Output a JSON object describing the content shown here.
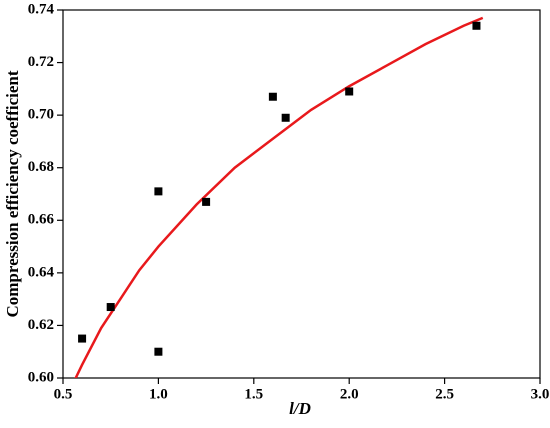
{
  "chart_data": {
    "type": "scatter",
    "x_label": "l/D",
    "y_label": "Compression efficiency coefficient",
    "xlim": [
      0.5,
      3.0
    ],
    "xticks": [
      0.5,
      {
        "value": 1.0,
        "label": "1.0"
      },
      1.5,
      {
        "value": 2.0,
        "label": "2.0"
      },
      2.5,
      {
        "value": 3.0,
        "label": "3.0"
      }
    ],
    "ylim": [
      0.6,
      0.74
    ],
    "yticks": [
      {
        "value": 0.6,
        "label": "0.60"
      },
      0.62,
      0.64,
      0.66,
      0.68,
      {
        "value": 0.7,
        "label": "0.70"
      },
      0.72,
      0.74
    ],
    "series": [
      {
        "marker": "square",
        "color": "#000000",
        "x": [
          0.6,
          0.75,
          1.0,
          1.0,
          1.25,
          1.6,
          1.667,
          2.0,
          2.667
        ],
        "values": [
          0.615,
          0.627,
          0.671,
          0.61,
          0.667,
          0.707,
          0.699,
          0.709,
          0.734
        ]
      },
      {
        "marker": "line",
        "color": "#e8191c",
        "x": [
          0.56,
          0.6,
          0.7,
          0.8,
          0.9,
          1.0,
          1.2,
          1.4,
          1.6,
          1.8,
          2.0,
          2.2,
          2.4,
          2.6,
          2.7
        ],
        "values": [
          0.599,
          0.605,
          0.619,
          0.63,
          0.641,
          0.65,
          0.666,
          0.68,
          0.691,
          0.702,
          0.711,
          0.719,
          0.727,
          0.734,
          0.737
        ]
      }
    ]
  }
}
